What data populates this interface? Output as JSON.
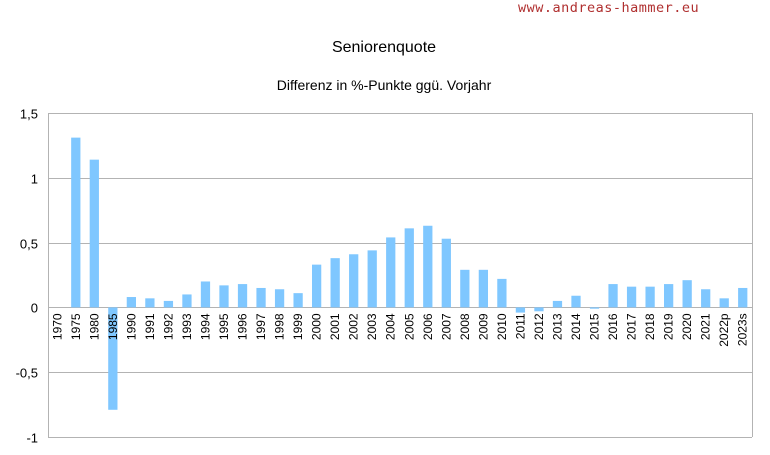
{
  "watermark": "www.andreas-hammer.eu",
  "chart_data": {
    "type": "bar",
    "title": "Seniorenquote",
    "subtitle": "Differenz in %-Punkte ggü. Vorjahr",
    "xlabel": "",
    "ylabel": "",
    "ylim": [
      -1,
      1.5
    ],
    "yticks": [
      1.5,
      1,
      0.5,
      0,
      -0.5,
      -1
    ],
    "ytick_labels": [
      "1,5",
      "1",
      "0,5",
      "0",
      "-0,5",
      "-1"
    ],
    "grid": true,
    "legend": "none",
    "bar_color": "#7fc7ff",
    "categories": [
      "1970",
      "1975",
      "1980",
      "1985",
      "1990",
      "1991",
      "1992",
      "1993",
      "1994",
      "1995",
      "1996",
      "1997",
      "1998",
      "1999",
      "2000",
      "2001",
      "2002",
      "2003",
      "2004",
      "2005",
      "2006",
      "2007",
      "2008",
      "2009",
      "2010",
      "2011",
      "2012",
      "2013",
      "2014",
      "2015",
      "2016",
      "2017",
      "2018",
      "2019",
      "2020",
      "2021",
      "2022p",
      "2023s"
    ],
    "values": [
      0,
      1.31,
      1.14,
      -0.79,
      0.08,
      0.07,
      0.05,
      0.1,
      0.2,
      0.17,
      0.18,
      0.15,
      0.14,
      0.11,
      0.33,
      0.38,
      0.41,
      0.44,
      0.54,
      0.61,
      0.63,
      0.53,
      0.29,
      0.29,
      0.22,
      -0.04,
      -0.03,
      0.05,
      0.09,
      -0.01,
      0.18,
      0.16,
      0.16,
      0.18,
      0.21,
      0.14,
      0.07,
      0.15
    ]
  }
}
